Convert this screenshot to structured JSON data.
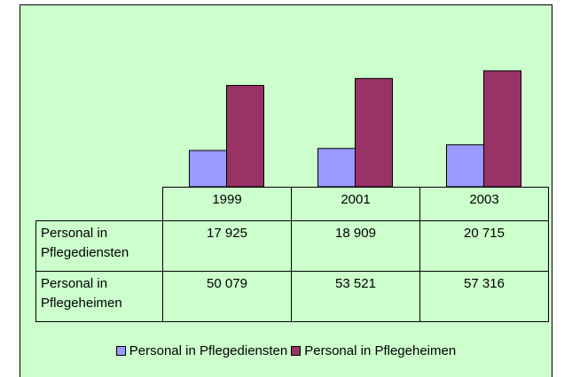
{
  "chart_data": {
    "type": "bar",
    "categories": [
      "1999",
      "2001",
      "2003"
    ],
    "series": [
      {
        "name": "Personal in Pflegediensten",
        "color": "#9999ff",
        "values": [
          17925,
          18909,
          20715
        ],
        "value_labels": [
          "17 925",
          "18 909",
          "20 715"
        ]
      },
      {
        "name": "Personal in Pflegeheimen",
        "color": "#993366",
        "values": [
          50079,
          53521,
          57316
        ],
        "value_labels": [
          "50 079",
          "53 521",
          "57 316"
        ]
      }
    ],
    "ylim": [
      0,
      70000
    ],
    "background": "#ccffcc"
  }
}
